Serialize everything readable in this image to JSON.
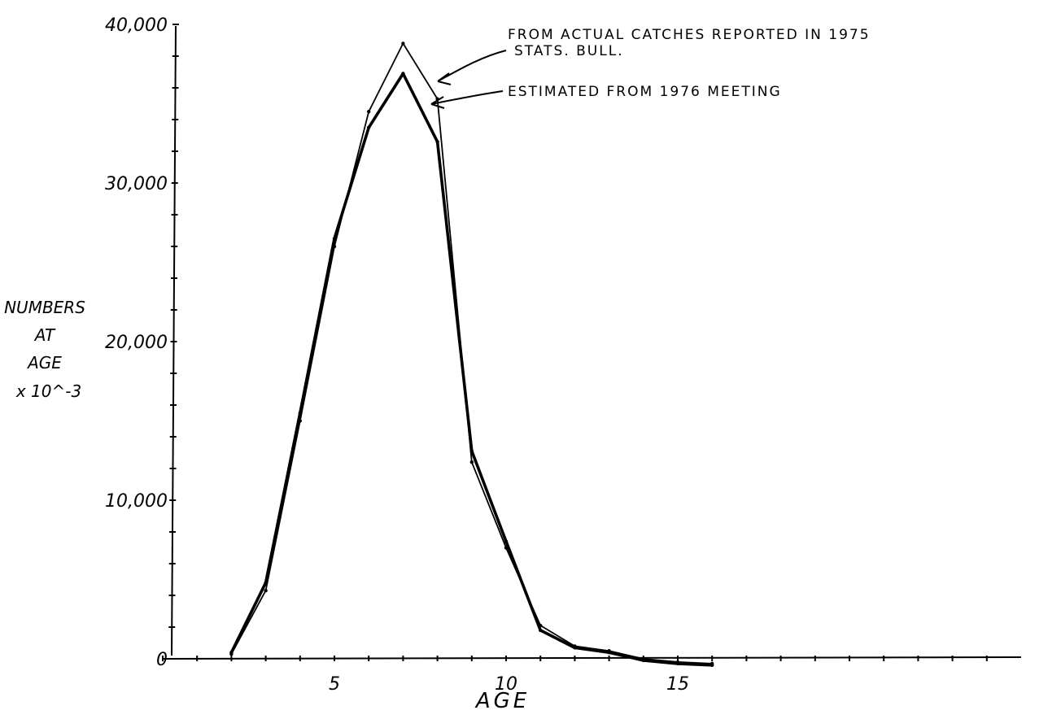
{
  "chart_data": {
    "type": "line",
    "title": "",
    "xlabel": "AGE",
    "ylabel_lines": [
      "NUMBERS",
      "AT",
      "AGE",
      "x 10^-3"
    ],
    "xlim": [
      0,
      25
    ],
    "ylim": [
      0,
      40000
    ],
    "x_ticks": [
      5,
      10,
      15
    ],
    "x_tick_labels": [
      "5",
      "10",
      "15"
    ],
    "y_ticks": [
      0,
      10000,
      20000,
      30000,
      40000
    ],
    "y_tick_labels": [
      "0",
      "10,000",
      "20,000",
      "30,000",
      "40,000"
    ],
    "grid": false,
    "x": [
      2,
      3,
      4,
      5,
      6,
      7,
      8,
      9,
      10,
      11,
      12,
      13,
      14,
      15,
      16
    ],
    "series": [
      {
        "values": [
          300,
          4300,
          15000,
          26000,
          34500,
          38800,
          35300,
          12400,
          7000,
          2100,
          800,
          500,
          0,
          -200,
          -300
        ]
      },
      {
        "values": [
          400,
          4800,
          15500,
          26500,
          33500,
          36900,
          32600,
          13100,
          7400,
          1800,
          700,
          400,
          -100,
          -300,
          -400
        ]
      }
    ],
    "annotations": [
      {
        "line1": "FROM ACTUAL CATCHES REPORTED IN 1975",
        "line2": "STATS. BULL.",
        "points_to": {
          "x": 7.7,
          "y": 36000
        }
      },
      {
        "line1": "ESTIMATED FROM 1976 MEETING",
        "points_to": {
          "x": 7.5,
          "y": 34200
        }
      }
    ]
  }
}
